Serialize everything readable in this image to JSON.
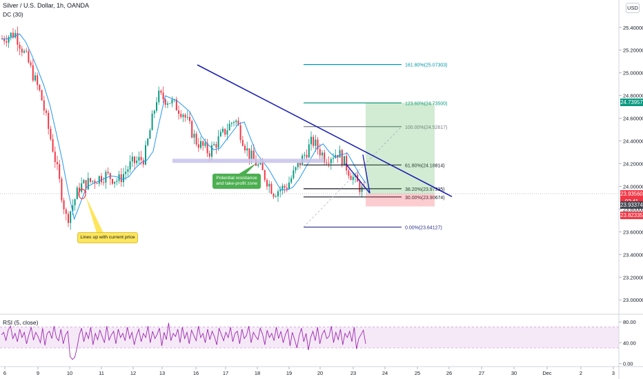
{
  "header": {
    "symbol_title": "Silver / U.S. Dollar, 1h, OANDA",
    "indicator_label": "DC (30)",
    "currency_button": "USD"
  },
  "rsi": {
    "label": "RSI (5, close)",
    "upper": 70,
    "lower": 30
  },
  "annotations": {
    "note_lines_up": "Lines up with current price",
    "note_resistance_1": "Potential resistance",
    "note_resistance_2": "and take-profit zone"
  },
  "price_badges": [
    {
      "value": "24.73957",
      "color": "#089981"
    },
    {
      "value": "23.93560",
      "color": "#f23645"
    },
    {
      "value": "02:41",
      "color": "#f23645"
    },
    {
      "value": "23.93374",
      "color": "#434651"
    },
    {
      "value": "23.82335",
      "color": "#f23645"
    }
  ],
  "chart_data": [
    {
      "type": "candlestick",
      "title": "Silver / U.S. Dollar, 1h, OANDA",
      "y_axis_ticks": [
        "25.40000",
        "25.20000",
        "25.00000",
        "24.80000",
        "24.60000",
        "24.40000",
        "24.20000",
        "24.00000",
        "23.80000",
        "23.60000",
        "23.40000",
        "23.20000",
        "23.00000"
      ],
      "ylim": [
        22.88,
        25.52
      ],
      "x_axis_ticks": [
        "6",
        "9",
        "10",
        "11",
        "12",
        "13",
        "16",
        "17",
        "18",
        "19",
        "20",
        "23",
        "24",
        "25",
        "26",
        "27",
        "30",
        "Dec",
        "2",
        "3"
      ],
      "last_price": 23.9356,
      "close_trend": [
        [
          0,
          25.3
        ],
        [
          1,
          25.35
        ],
        [
          2,
          25.1
        ],
        [
          3,
          24.8
        ],
        [
          4,
          24.3
        ],
        [
          5,
          23.7
        ],
        [
          6,
          24.0
        ],
        [
          7,
          24.05
        ],
        [
          8,
          24.1
        ],
        [
          9,
          24.05
        ],
        [
          10,
          24.2
        ],
        [
          11,
          24.25
        ],
        [
          12,
          24.8
        ],
        [
          13,
          24.75
        ],
        [
          14,
          24.65
        ],
        [
          15,
          24.4
        ],
        [
          16,
          24.3
        ],
        [
          17,
          24.45
        ],
        [
          18,
          24.6
        ],
        [
          19,
          24.3
        ],
        [
          20,
          24.15
        ],
        [
          21,
          23.95
        ],
        [
          22,
          24.0
        ],
        [
          23,
          24.2
        ],
        [
          24,
          24.4
        ],
        [
          25,
          24.25
        ],
        [
          26,
          24.3
        ],
        [
          27,
          24.1
        ],
        [
          28,
          23.94
        ]
      ],
      "fibonacci": [
        {
          "label": "161.80%(25.07303)",
          "price": 25.07303,
          "color": "#0097a7"
        },
        {
          "label": "123.60%(24.73500)",
          "price": 24.735,
          "color": "#089981"
        },
        {
          "label": "100.00%(24.52617)",
          "price": 24.52617,
          "color": "#787b86"
        },
        {
          "label": "61.80%(24.18814)",
          "price": 24.18814,
          "color": "#131722"
        },
        {
          "label": "38.20%(23.97935)",
          "price": 23.97935,
          "color": "#131722"
        },
        {
          "label": "30.00%(23.90674)",
          "price": 23.90674,
          "color": "#131722"
        },
        {
          "label": "0.00%(23.64127)",
          "price": 23.64127,
          "color": "#2a2e8c"
        }
      ],
      "trendline": {
        "from_price": 25.07,
        "to_price": 23.91,
        "color": "#1a1fb3"
      },
      "support_zone": {
        "price": 24.225,
        "color": "#c7c2ea"
      },
      "position": {
        "target": 24.735,
        "entry": 23.935,
        "stop": 23.82335
      }
    },
    {
      "type": "line",
      "title": "RSI (5, close)",
      "y_axis_ticks": [
        "80.00",
        "40.00",
        "0.00"
      ],
      "ylim": [
        -3,
        92
      ],
      "band": [
        30,
        70
      ],
      "series": [
        {
          "values": [
            55,
            60,
            44,
            65,
            72,
            48,
            58,
            42,
            66,
            50,
            60,
            38,
            55,
            70,
            45,
            60,
            52,
            40,
            68,
            35,
            58,
            62,
            48,
            72,
            50,
            44,
            66,
            38,
            55,
            62,
            14,
            8,
            12,
            30,
            55,
            68,
            42,
            60,
            48,
            70,
            36,
            58,
            46,
            64,
            52,
            40,
            72,
            45,
            55,
            62,
            38,
            66,
            50,
            58,
            44,
            70,
            48,
            60,
            36,
            54,
            66,
            42,
            58,
            50,
            72,
            40,
            62,
            48,
            56,
            68,
            34,
            60,
            46,
            78,
            44,
            58,
            52,
            66,
            40,
            70,
            48,
            60,
            38,
            64,
            54,
            44,
            72,
            50,
            58,
            40,
            66,
            46,
            62,
            52,
            36,
            68,
            56,
            44,
            60,
            50,
            70,
            42,
            58,
            62,
            38,
            66,
            48,
            54,
            72,
            40,
            60,
            52,
            46,
            68,
            56,
            36,
            64,
            50,
            58,
            44,
            70,
            48,
            62,
            40,
            56,
            66,
            34,
            60,
            46,
            30,
            54,
            68,
            42,
            58,
            26,
            50,
            62,
            44,
            70,
            38,
            56,
            64,
            48,
            52,
            72,
            40,
            60,
            46,
            66,
            36,
            58,
            50,
            62,
            42,
            70,
            28,
            48,
            56,
            64,
            38
          ]
        }
      ]
    }
  ]
}
